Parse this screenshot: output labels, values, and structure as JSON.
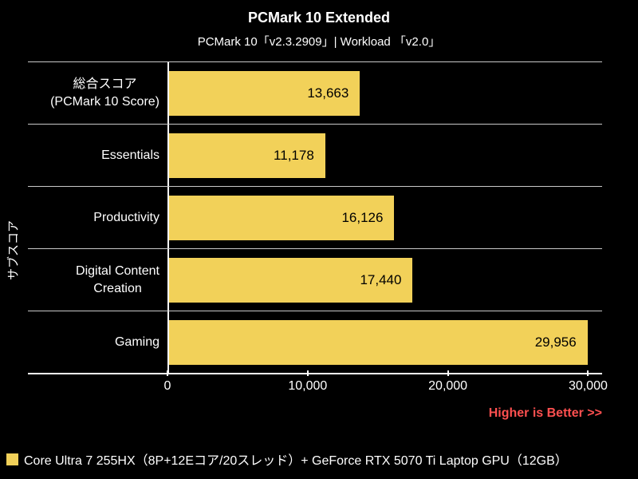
{
  "title": "PCMark 10 Extended",
  "subtitle": "PCMark 10「v2.3.2909」| Workload 「v2.0」",
  "side_axis_label": "サブスコア",
  "footer": {
    "higher_better": "Higher is Better >>",
    "higher_better_color": "#FF5050",
    "legend": {
      "swatch_color": "#F2D159",
      "label": "Core Ultra 7 255HX（8P+12Eコア/20スレッド）+ GeForce RTX 5070 Ti Laptop GPU（12GB）"
    }
  },
  "chart_data": {
    "type": "bar",
    "orientation": "horizontal",
    "title": "PCMark 10 Extended",
    "subtitle": "PCMark 10「v2.3.2909」| Workload 「v2.0」",
    "ylabel": "サブスコア",
    "categories": [
      "総合スコア\n(PCMark 10 Score)",
      "Essentials",
      "Productivity",
      "Digital Content\nCreation",
      "Gaming"
    ],
    "values": [
      13663,
      11178,
      16126,
      17440,
      29956
    ],
    "value_labels": [
      "13,663",
      "11,178",
      "16,126",
      "17,440",
      "29,956"
    ],
    "series_name": "Core Ultra 7 255HX（8P+12Eコア/20スレッド）+ GeForce RTX 5070 Ti Laptop GPU（12GB）",
    "xlim": [
      0,
      31000
    ],
    "x_ticks": [
      0,
      10000,
      20000,
      30000
    ],
    "x_tick_labels": [
      "0",
      "10,000",
      "20,000",
      "30,000"
    ],
    "bar_color": "#F2D159",
    "annotation": "Higher is Better >>",
    "grid": false,
    "legend_position": "bottom-left",
    "background_color": "#000000"
  }
}
